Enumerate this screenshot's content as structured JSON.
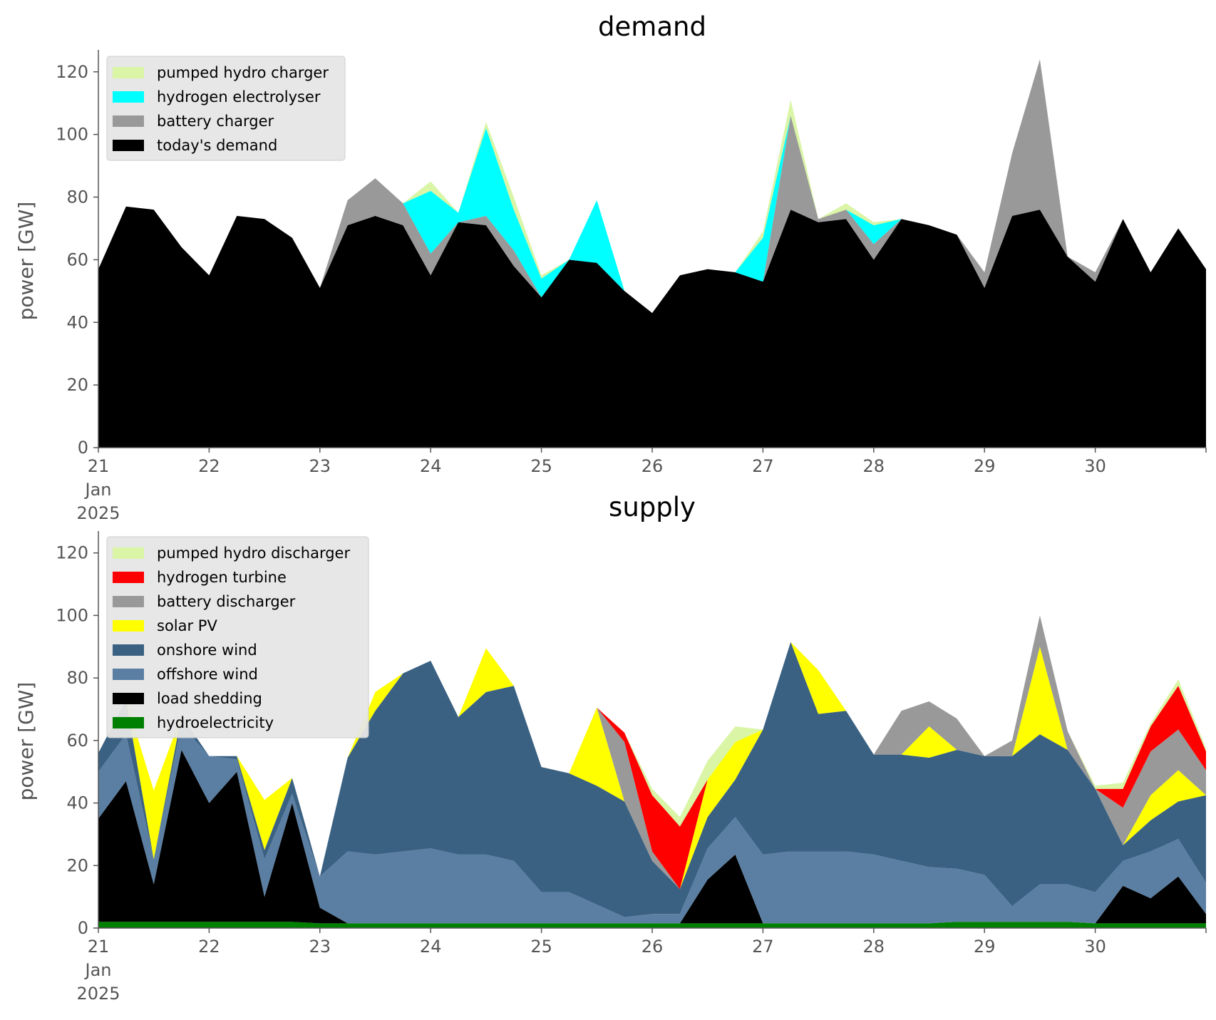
{
  "chart_data": [
    {
      "type": "area",
      "stacked": true,
      "title": "demand",
      "ylabel": "power [GW]",
      "xlabel": "",
      "xlim": [
        "2025-01-21 00:00",
        "2025-01-31 00:00"
      ],
      "ylim": [
        0,
        127
      ],
      "yticks": [
        0,
        20,
        40,
        60,
        80,
        100,
        120
      ],
      "xtick_labels": [
        "21\nJan\n2025",
        "22",
        "23",
        "24",
        "25",
        "26",
        "27",
        "28",
        "29",
        "30"
      ],
      "grid": false,
      "legend_position": "top-left",
      "legend": [
        "pumped hydro charger",
        "hydrogen electrolyser",
        "battery charger",
        "today's demand"
      ],
      "x": [
        "2025-01-21 00:00",
        "2025-01-21 06:00",
        "2025-01-21 12:00",
        "2025-01-21 18:00",
        "2025-01-22 00:00",
        "2025-01-22 06:00",
        "2025-01-22 12:00",
        "2025-01-22 18:00",
        "2025-01-23 00:00",
        "2025-01-23 06:00",
        "2025-01-23 12:00",
        "2025-01-23 18:00",
        "2025-01-24 00:00",
        "2025-01-24 06:00",
        "2025-01-24 12:00",
        "2025-01-24 18:00",
        "2025-01-25 00:00",
        "2025-01-25 06:00",
        "2025-01-25 12:00",
        "2025-01-25 18:00",
        "2025-01-26 00:00",
        "2025-01-26 06:00",
        "2025-01-26 12:00",
        "2025-01-26 18:00",
        "2025-01-27 00:00",
        "2025-01-27 06:00",
        "2025-01-27 12:00",
        "2025-01-27 18:00",
        "2025-01-28 00:00",
        "2025-01-28 06:00",
        "2025-01-28 12:00",
        "2025-01-28 18:00",
        "2025-01-29 00:00",
        "2025-01-29 06:00",
        "2025-01-29 12:00",
        "2025-01-29 18:00",
        "2025-01-30 00:00",
        "2025-01-30 06:00",
        "2025-01-30 12:00",
        "2025-01-30 18:00",
        "2025-01-31 00:00"
      ],
      "series": [
        {
          "name": "today's demand",
          "color": "#000000",
          "values": [
            57,
            77,
            76,
            64,
            55,
            74,
            73,
            67,
            51,
            71,
            74,
            71,
            55,
            72,
            71,
            58,
            48,
            60,
            59,
            50,
            43,
            55,
            57,
            56,
            53,
            76,
            72,
            73,
            60,
            73,
            71,
            68,
            51,
            74,
            76,
            61,
            53,
            73,
            56,
            70,
            57
          ]
        },
        {
          "name": "battery charger",
          "color": "#999999",
          "values": [
            0,
            0,
            0,
            0,
            0,
            0,
            0,
            0,
            0,
            8,
            12,
            7,
            7,
            0,
            3,
            5,
            0,
            0,
            0,
            0,
            0,
            0,
            0,
            0,
            0,
            30,
            1,
            3,
            5,
            0,
            0,
            0,
            5,
            20,
            48,
            0,
            3,
            0,
            0,
            0,
            0
          ]
        },
        {
          "name": "hydrogen electrolyser",
          "color": "#00ffff",
          "values": [
            0,
            0,
            0,
            0,
            0,
            0,
            0,
            0,
            0,
            0,
            0,
            0,
            20,
            3,
            28,
            13,
            6,
            0,
            20,
            0,
            0,
            0,
            0,
            0,
            14,
            0,
            0,
            0,
            6,
            0,
            0,
            0,
            0,
            0,
            0,
            0,
            0,
            0,
            0,
            0,
            0
          ]
        },
        {
          "name": "pumped hydro charger",
          "color": "#d9f5a5",
          "values": [
            0,
            0,
            0,
            0,
            0,
            0,
            0,
            0,
            0,
            0,
            0,
            0,
            3,
            0,
            2,
            4,
            1,
            0,
            0,
            0,
            0,
            0,
            0,
            0,
            2,
            5,
            0,
            2,
            1,
            0,
            0,
            0,
            0,
            0,
            0,
            0,
            0,
            0,
            0,
            0,
            0
          ]
        }
      ]
    },
    {
      "type": "area",
      "stacked": true,
      "title": "supply",
      "ylabel": "power [GW]",
      "xlabel": "",
      "xlim": [
        "2025-01-21 00:00",
        "2025-01-31 00:00"
      ],
      "ylim": [
        0,
        127
      ],
      "yticks": [
        0,
        20,
        40,
        60,
        80,
        100,
        120
      ],
      "xtick_labels": [
        "21\nJan\n2025",
        "22",
        "23",
        "24",
        "25",
        "26",
        "27",
        "28",
        "29",
        "30"
      ],
      "grid": false,
      "legend_position": "top-left",
      "legend": [
        "pumped hydro discharger",
        "hydrogen turbine",
        "battery discharger",
        "solar PV",
        "onshore wind",
        "offshore wind",
        "load shedding",
        "hydroelectricity"
      ],
      "x": [
        "2025-01-21 00:00",
        "2025-01-21 06:00",
        "2025-01-21 12:00",
        "2025-01-21 18:00",
        "2025-01-22 00:00",
        "2025-01-22 06:00",
        "2025-01-22 12:00",
        "2025-01-22 18:00",
        "2025-01-23 00:00",
        "2025-01-23 06:00",
        "2025-01-23 12:00",
        "2025-01-23 18:00",
        "2025-01-24 00:00",
        "2025-01-24 06:00",
        "2025-01-24 12:00",
        "2025-01-24 18:00",
        "2025-01-25 00:00",
        "2025-01-25 06:00",
        "2025-01-25 12:00",
        "2025-01-25 18:00",
        "2025-01-26 00:00",
        "2025-01-26 06:00",
        "2025-01-26 12:00",
        "2025-01-26 18:00",
        "2025-01-27 00:00",
        "2025-01-27 06:00",
        "2025-01-27 12:00",
        "2025-01-27 18:00",
        "2025-01-28 00:00",
        "2025-01-28 06:00",
        "2025-01-28 12:00",
        "2025-01-28 18:00",
        "2025-01-29 00:00",
        "2025-01-29 06:00",
        "2025-01-29 12:00",
        "2025-01-29 18:00",
        "2025-01-30 00:00",
        "2025-01-30 06:00",
        "2025-01-30 12:00",
        "2025-01-30 18:00",
        "2025-01-31 00:00"
      ],
      "series": [
        {
          "name": "hydroelectricity",
          "color": "#008000",
          "values": [
            2,
            2,
            2,
            2,
            2,
            2,
            2,
            2,
            1.5,
            1.5,
            1.5,
            1.5,
            1.5,
            1.5,
            1.5,
            1.5,
            1.5,
            1.5,
            1.5,
            1.5,
            1.5,
            1.5,
            1.5,
            1.5,
            1.5,
            1.5,
            1.5,
            1.5,
            1.5,
            1.5,
            1.5,
            2,
            2,
            2,
            2,
            2,
            1.5,
            1.5,
            1.5,
            1.5,
            1.5
          ]
        },
        {
          "name": "load shedding",
          "color": "#000000",
          "values": [
            33,
            45,
            12,
            55,
            38,
            48,
            8,
            38,
            5,
            0,
            0,
            0,
            0,
            0,
            0,
            0,
            0,
            0,
            0,
            0,
            0,
            0,
            14,
            22,
            0,
            0,
            0,
            0,
            0,
            0,
            0,
            0,
            0,
            0,
            0,
            0,
            0,
            12,
            8,
            15,
            3
          ]
        },
        {
          "name": "offshore wind",
          "color": "#5b7fa3",
          "values": [
            15,
            15,
            8,
            8,
            15,
            4,
            12,
            3,
            10,
            23,
            22,
            23,
            24,
            22,
            22,
            20,
            10,
            10,
            6,
            2,
            3,
            3,
            10,
            12,
            22,
            23,
            23,
            23,
            22,
            20,
            18,
            17,
            15,
            5,
            12,
            12,
            10,
            8,
            15,
            12,
            10
          ]
        },
        {
          "name": "onshore wind",
          "color": "#3a6182",
          "values": [
            6,
            11,
            0,
            3,
            0,
            1,
            3,
            5,
            0,
            30,
            46,
            57,
            60,
            44,
            52,
            56,
            40,
            38,
            38,
            37,
            17,
            8,
            10,
            12,
            40,
            67,
            44,
            45,
            32,
            34,
            35,
            38,
            38,
            48,
            48,
            43,
            33,
            5,
            10,
            12,
            28
          ]
        },
        {
          "name": "solar PV",
          "color": "#ffff00",
          "values": [
            0,
            0,
            22,
            0,
            0,
            0,
            16,
            0,
            0,
            0,
            6,
            0,
            0,
            0,
            14,
            0,
            0,
            0,
            25,
            0,
            0,
            0,
            12,
            12,
            0,
            0,
            14,
            0,
            0,
            0,
            10,
            0,
            0,
            0,
            28,
            0,
            0,
            0,
            8,
            10,
            0
          ]
        },
        {
          "name": "battery discharger",
          "color": "#999999",
          "values": [
            0,
            0,
            0,
            0,
            0,
            0,
            0,
            0,
            0,
            0,
            0,
            0,
            0,
            0,
            0,
            0,
            0,
            0,
            0,
            19,
            3,
            0,
            0,
            0,
            0,
            0,
            0,
            0,
            0,
            14,
            8,
            10,
            0,
            5,
            10,
            6,
            0,
            12,
            14,
            13,
            8
          ]
        },
        {
          "name": "hydrogen turbine",
          "color": "#ff0000",
          "values": [
            0,
            0,
            0,
            0,
            0,
            0,
            0,
            0,
            0,
            0,
            0,
            0,
            0,
            0,
            0,
            0,
            0,
            0,
            0,
            3,
            18,
            20,
            0,
            0,
            0,
            0,
            0,
            0,
            0,
            0,
            0,
            0,
            0,
            0,
            0,
            0,
            0,
            6,
            8,
            14,
            6
          ]
        },
        {
          "name": "pumped hydro discharger",
          "color": "#d9f5a5",
          "values": [
            0,
            0,
            0,
            0,
            0,
            0,
            0,
            0,
            0,
            0,
            0,
            0,
            0,
            0,
            0,
            0,
            0,
            0,
            0,
            0,
            2,
            3,
            6,
            5,
            0,
            0,
            0,
            0,
            0,
            0,
            0,
            0,
            0,
            0,
            0,
            0,
            1,
            2,
            1,
            2,
            1
          ]
        }
      ]
    }
  ]
}
